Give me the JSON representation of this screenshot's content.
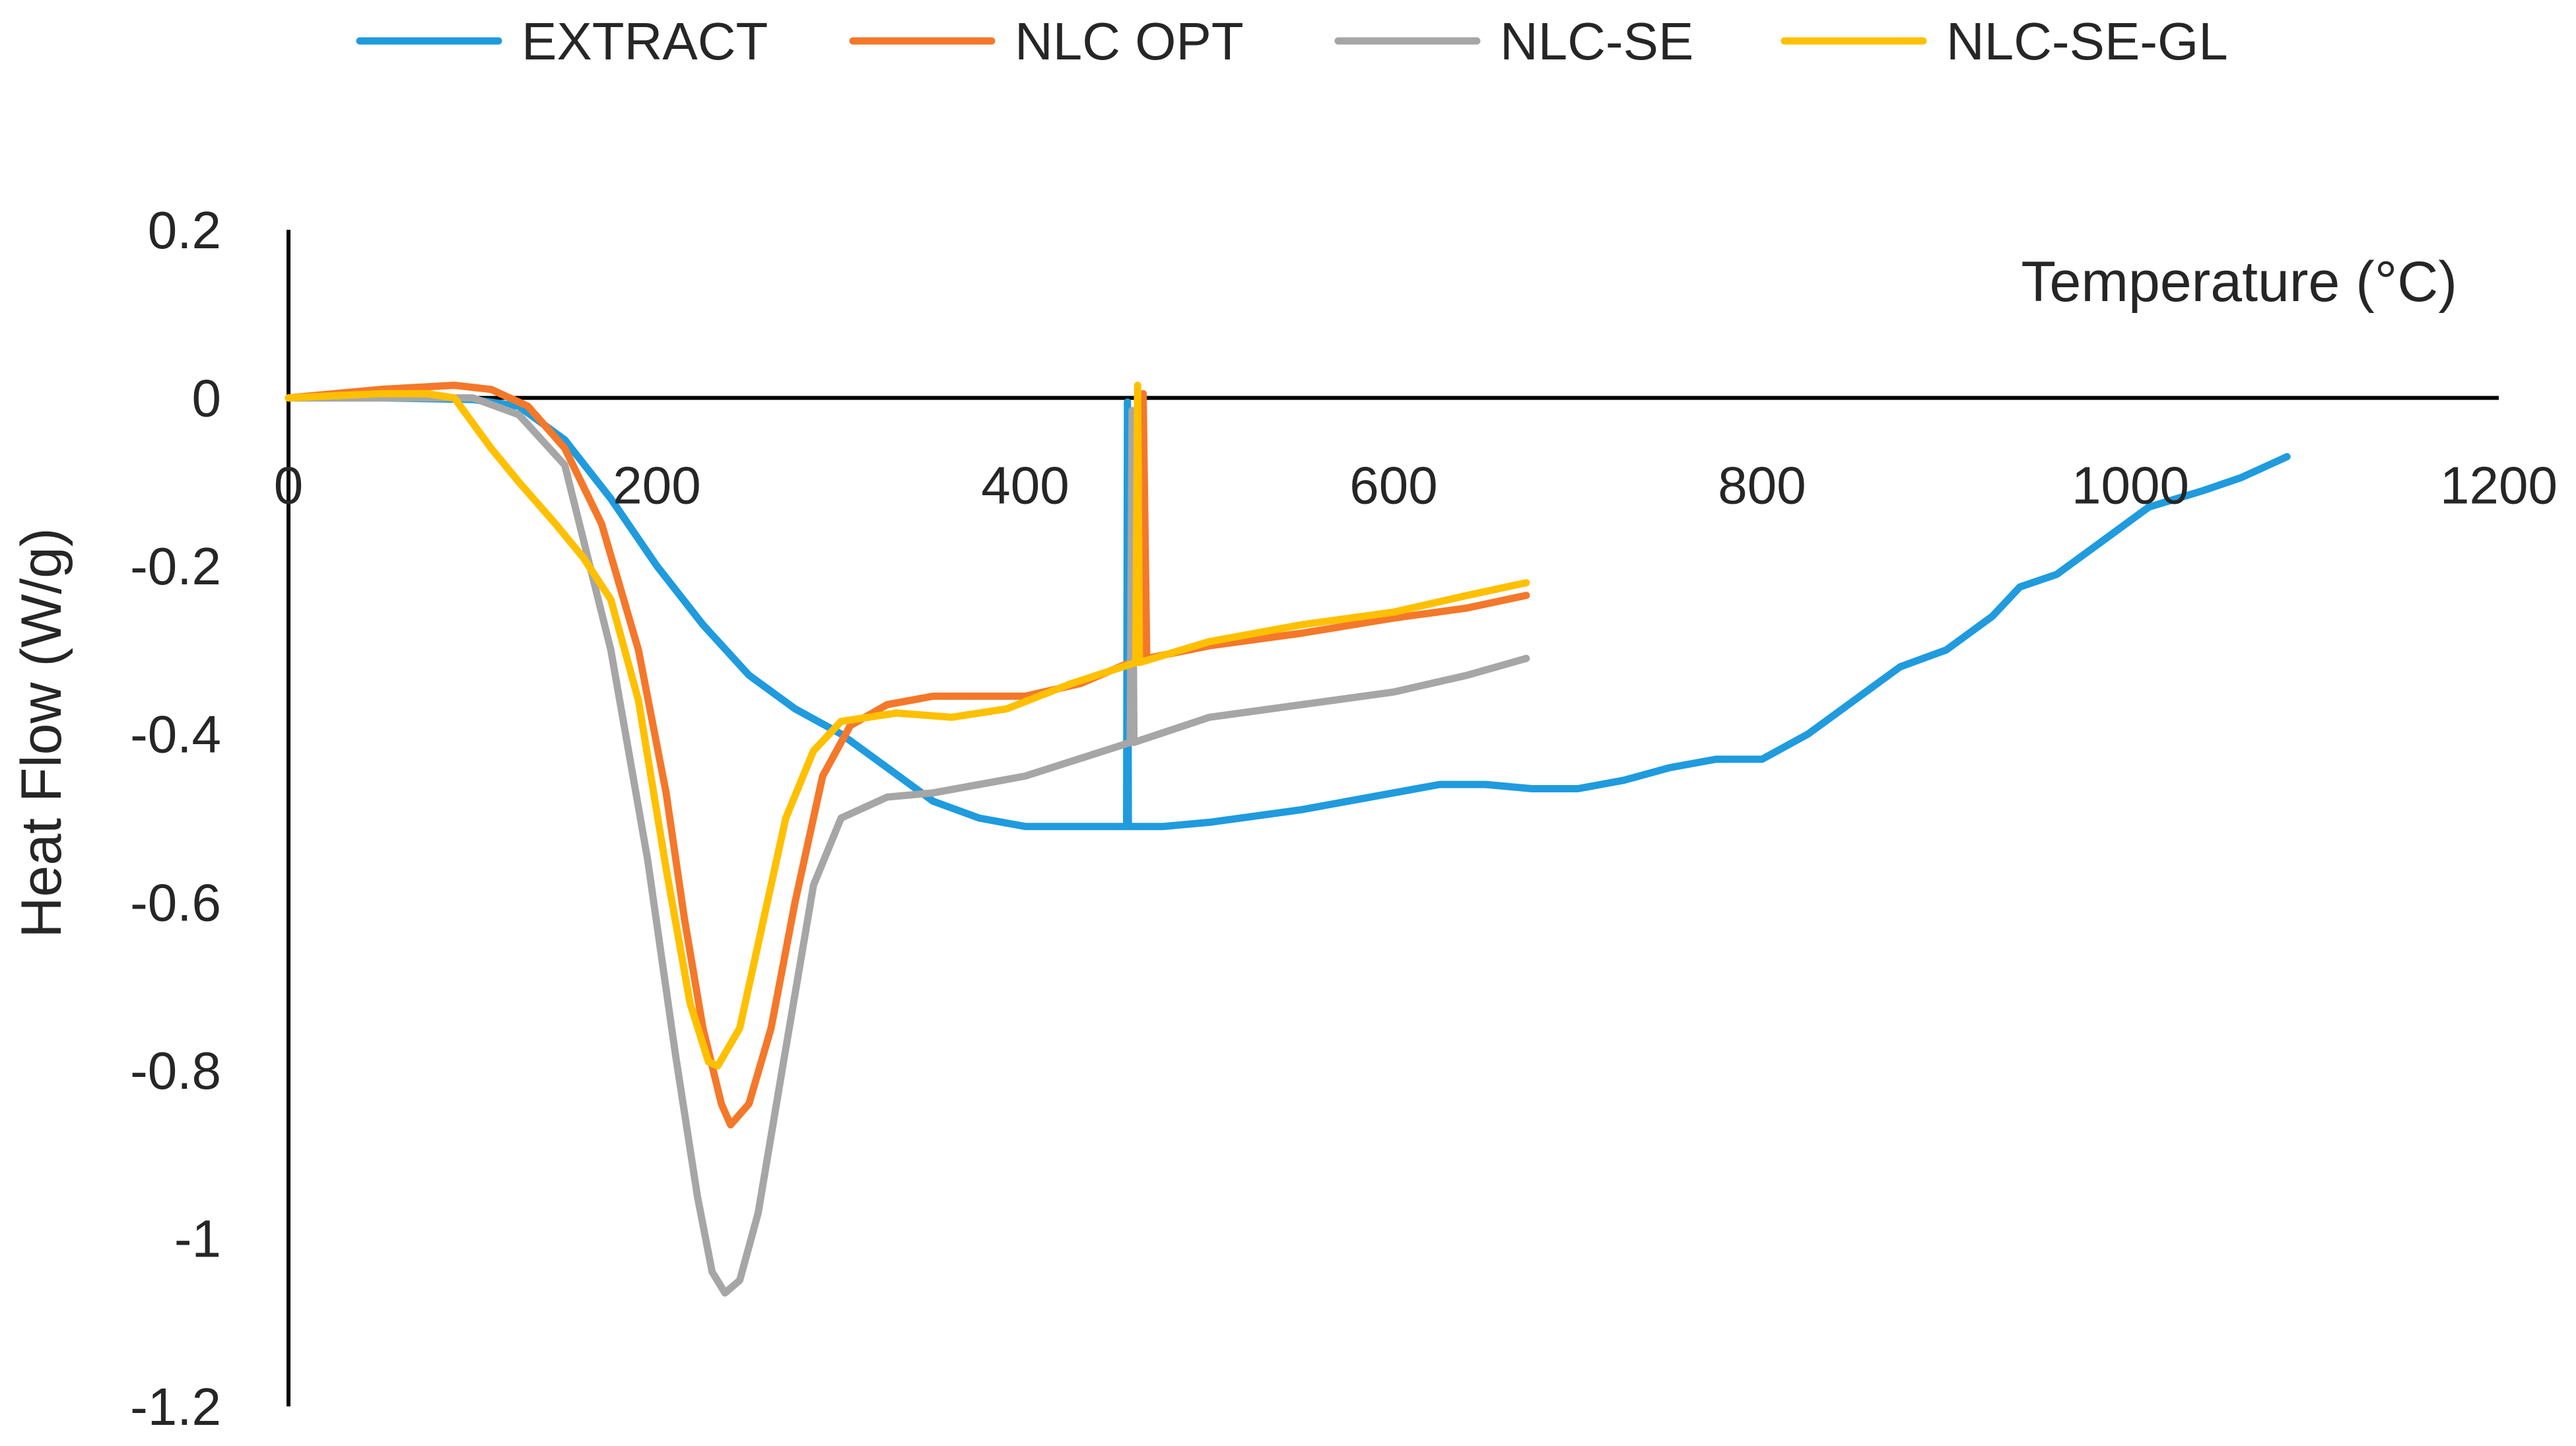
{
  "chart_data": {
    "type": "line",
    "title": "",
    "xlabel": "Temperature (°C)",
    "ylabel": "Heat Flow (W/g)",
    "xlim": [
      0,
      1200
    ],
    "ylim": [
      -1.2,
      0.2
    ],
    "x_ticks": [
      "0",
      "200",
      "400",
      "600",
      "800",
      "1000",
      "1200"
    ],
    "y_ticks": [
      "0.2",
      "0",
      "-0.2",
      "-0.4",
      "-0.6",
      "-0.8",
      "-1",
      "-1.2"
    ],
    "legend_position": "top",
    "series": [
      {
        "name": "EXTRACT",
        "color": "#1F9BDE",
        "points": [
          [
            0,
            0
          ],
          [
            50,
            0
          ],
          [
            100,
            -0.002
          ],
          [
            125,
            -0.01
          ],
          [
            150,
            -0.05
          ],
          [
            175,
            -0.12
          ],
          [
            200,
            -0.2
          ],
          [
            225,
            -0.27
          ],
          [
            250,
            -0.33
          ],
          [
            275,
            -0.37
          ],
          [
            300,
            -0.4
          ],
          [
            325,
            -0.44
          ],
          [
            350,
            -0.48
          ],
          [
            375,
            -0.5
          ],
          [
            400,
            -0.51
          ],
          [
            430,
            -0.51
          ],
          [
            455,
            -0.51
          ],
          [
            455.5,
            -0.005
          ],
          [
            456,
            -0.51
          ],
          [
            475,
            -0.51
          ],
          [
            500,
            -0.505
          ],
          [
            550,
            -0.49
          ],
          [
            600,
            -0.47
          ],
          [
            625,
            -0.46
          ],
          [
            650,
            -0.46
          ],
          [
            675,
            -0.465
          ],
          [
            700,
            -0.465
          ],
          [
            725,
            -0.455
          ],
          [
            750,
            -0.44
          ],
          [
            775,
            -0.43
          ],
          [
            800,
            -0.43
          ],
          [
            825,
            -0.4
          ],
          [
            850,
            -0.36
          ],
          [
            875,
            -0.32
          ],
          [
            900,
            -0.3
          ],
          [
            925,
            -0.26
          ],
          [
            940,
            -0.225
          ],
          [
            960,
            -0.21
          ],
          [
            985,
            -0.17
          ],
          [
            1010,
            -0.13
          ],
          [
            1040,
            -0.11
          ],
          [
            1060,
            -0.095
          ],
          [
            1085,
            -0.07
          ]
        ]
      },
      {
        "name": "NLC OPT",
        "color": "#F4782A",
        "points": [
          [
            0,
            0
          ],
          [
            50,
            0.01
          ],
          [
            90,
            0.015
          ],
          [
            110,
            0.01
          ],
          [
            130,
            -0.01
          ],
          [
            150,
            -0.06
          ],
          [
            170,
            -0.15
          ],
          [
            190,
            -0.3
          ],
          [
            205,
            -0.47
          ],
          [
            215,
            -0.62
          ],
          [
            225,
            -0.75
          ],
          [
            235,
            -0.84
          ],
          [
            240,
            -0.865
          ],
          [
            250,
            -0.84
          ],
          [
            262,
            -0.75
          ],
          [
            275,
            -0.6
          ],
          [
            290,
            -0.45
          ],
          [
            305,
            -0.39
          ],
          [
            325,
            -0.365
          ],
          [
            350,
            -0.355
          ],
          [
            400,
            -0.355
          ],
          [
            430,
            -0.34
          ],
          [
            462,
            -0.31
          ],
          [
            464,
            0.005
          ],
          [
            466,
            -0.31
          ],
          [
            500,
            -0.295
          ],
          [
            550,
            -0.28
          ],
          [
            600,
            -0.262
          ],
          [
            640,
            -0.25
          ],
          [
            672,
            -0.235
          ]
        ]
      },
      {
        "name": "NLC-SE",
        "color": "#A6A6A6",
        "points": [
          [
            0,
            0
          ],
          [
            50,
            0
          ],
          [
            100,
            0
          ],
          [
            125,
            -0.02
          ],
          [
            150,
            -0.08
          ],
          [
            175,
            -0.3
          ],
          [
            195,
            -0.55
          ],
          [
            210,
            -0.78
          ],
          [
            222,
            -0.95
          ],
          [
            230,
            -1.04
          ],
          [
            237,
            -1.065
          ],
          [
            245,
            -1.05
          ],
          [
            255,
            -0.97
          ],
          [
            268,
            -0.8
          ],
          [
            285,
            -0.58
          ],
          [
            300,
            -0.5
          ],
          [
            325,
            -0.475
          ],
          [
            350,
            -0.47
          ],
          [
            400,
            -0.45
          ],
          [
            450,
            -0.415
          ],
          [
            457,
            -0.41
          ],
          [
            458,
            -0.015
          ],
          [
            459,
            -0.41
          ],
          [
            500,
            -0.38
          ],
          [
            550,
            -0.365
          ],
          [
            600,
            -0.35
          ],
          [
            640,
            -0.33
          ],
          [
            672,
            -0.31
          ]
        ]
      },
      {
        "name": "NLC-SE-GL",
        "color": "#FFC000",
        "points": [
          [
            0,
            0
          ],
          [
            50,
            0.005
          ],
          [
            75,
            0.005
          ],
          [
            90,
            0
          ],
          [
            110,
            -0.06
          ],
          [
            125,
            -0.1
          ],
          [
            145,
            -0.15
          ],
          [
            160,
            -0.19
          ],
          [
            175,
            -0.24
          ],
          [
            190,
            -0.36
          ],
          [
            205,
            -0.56
          ],
          [
            218,
            -0.72
          ],
          [
            228,
            -0.79
          ],
          [
            233,
            -0.795
          ],
          [
            245,
            -0.75
          ],
          [
            255,
            -0.65
          ],
          [
            270,
            -0.5
          ],
          [
            285,
            -0.42
          ],
          [
            300,
            -0.385
          ],
          [
            330,
            -0.375
          ],
          [
            360,
            -0.38
          ],
          [
            390,
            -0.37
          ],
          [
            425,
            -0.34
          ],
          [
            460,
            -0.315
          ],
          [
            461,
            0.015
          ],
          [
            462,
            -0.315
          ],
          [
            500,
            -0.29
          ],
          [
            550,
            -0.27
          ],
          [
            600,
            -0.255
          ],
          [
            640,
            -0.235
          ],
          [
            672,
            -0.22
          ]
        ]
      }
    ]
  }
}
